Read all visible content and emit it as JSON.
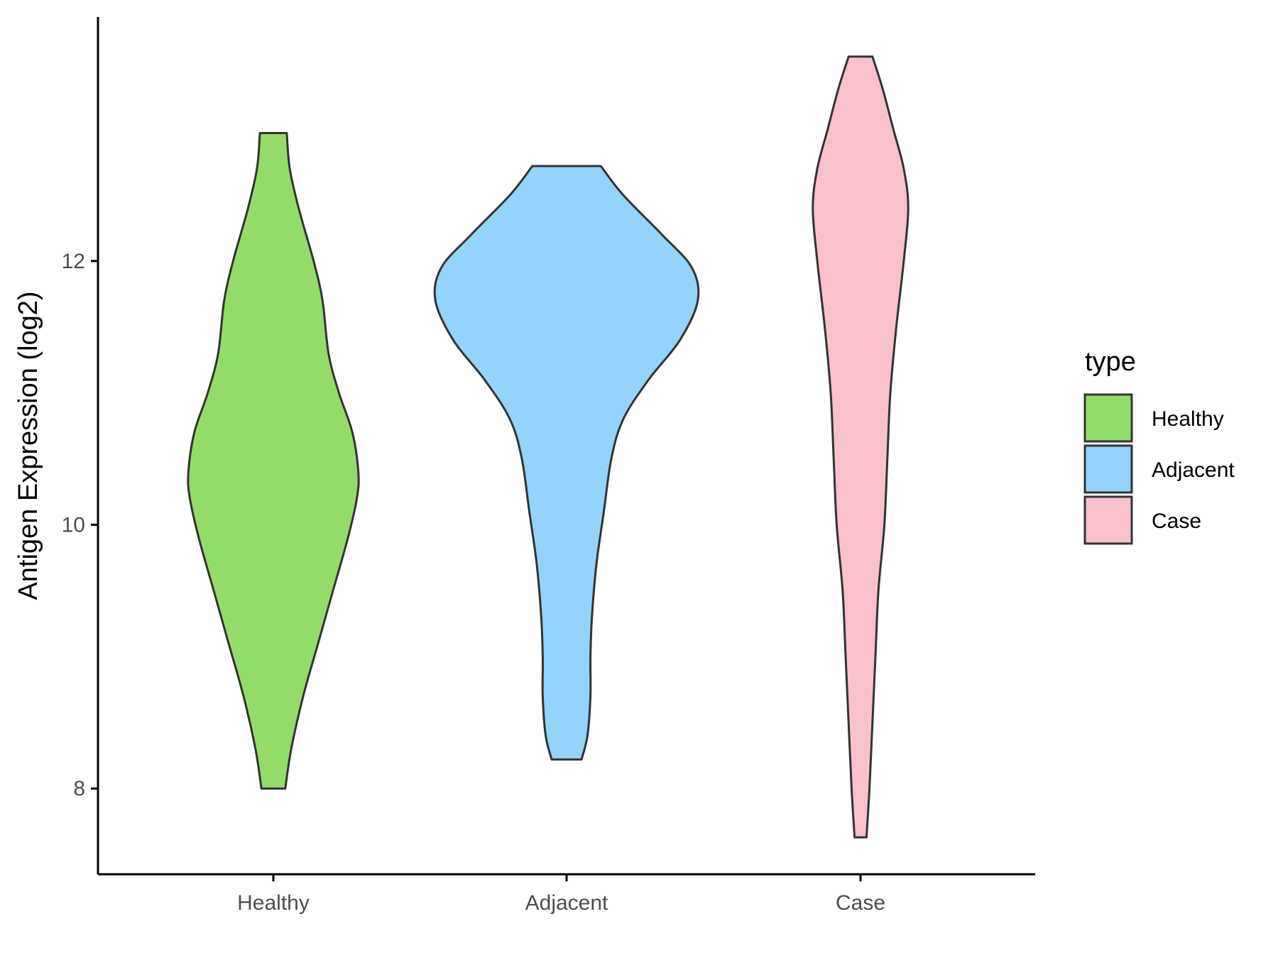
{
  "chart_data": {
    "type": "violin",
    "ylabel": "Antigen Expression (log2)",
    "xlabel": "",
    "categories": [
      "Healthy",
      "Adjacent",
      "Case"
    ],
    "y_ticks": [
      8,
      10,
      12
    ],
    "ylim": [
      7.35,
      13.85
    ],
    "grid": false,
    "legend": {
      "title": "type",
      "placement": "right",
      "entries": [
        "Healthy",
        "Adjacent",
        "Case"
      ]
    },
    "colors": {
      "Healthy": "#93dc6a",
      "Adjacent": "#93d3fc",
      "Case": "#f8c1cc",
      "outline": "#333333"
    },
    "series": [
      {
        "category": "Healthy",
        "min": 8.0,
        "max": 12.97,
        "density": [
          [
            8.0,
            0.08
          ],
          [
            8.3,
            0.12
          ],
          [
            8.7,
            0.2
          ],
          [
            9.1,
            0.3
          ],
          [
            9.5,
            0.4
          ],
          [
            9.9,
            0.5
          ],
          [
            10.2,
            0.56
          ],
          [
            10.4,
            0.57
          ],
          [
            10.7,
            0.53
          ],
          [
            11.0,
            0.44
          ],
          [
            11.3,
            0.37
          ],
          [
            11.7,
            0.33
          ],
          [
            12.0,
            0.27
          ],
          [
            12.4,
            0.17
          ],
          [
            12.7,
            0.11
          ],
          [
            12.97,
            0.09
          ]
        ]
      },
      {
        "category": "Adjacent",
        "min": 8.22,
        "max": 12.72,
        "density": [
          [
            8.22,
            0.1
          ],
          [
            8.4,
            0.14
          ],
          [
            8.7,
            0.16
          ],
          [
            9.0,
            0.16
          ],
          [
            9.3,
            0.17
          ],
          [
            9.7,
            0.2
          ],
          [
            10.1,
            0.25
          ],
          [
            10.5,
            0.3
          ],
          [
            10.8,
            0.38
          ],
          [
            11.1,
            0.55
          ],
          [
            11.4,
            0.76
          ],
          [
            11.7,
            0.88
          ],
          [
            11.95,
            0.84
          ],
          [
            12.2,
            0.64
          ],
          [
            12.5,
            0.38
          ],
          [
            12.72,
            0.23
          ]
        ]
      },
      {
        "category": "Case",
        "min": 7.63,
        "max": 13.55,
        "density": [
          [
            7.63,
            0.04
          ],
          [
            8.0,
            0.06
          ],
          [
            8.5,
            0.08
          ],
          [
            9.0,
            0.1
          ],
          [
            9.5,
            0.12
          ],
          [
            10.0,
            0.16
          ],
          [
            10.5,
            0.18
          ],
          [
            11.0,
            0.2
          ],
          [
            11.5,
            0.24
          ],
          [
            12.0,
            0.29
          ],
          [
            12.4,
            0.32
          ],
          [
            12.7,
            0.29
          ],
          [
            13.0,
            0.22
          ],
          [
            13.3,
            0.15
          ],
          [
            13.55,
            0.08
          ]
        ]
      }
    ]
  }
}
